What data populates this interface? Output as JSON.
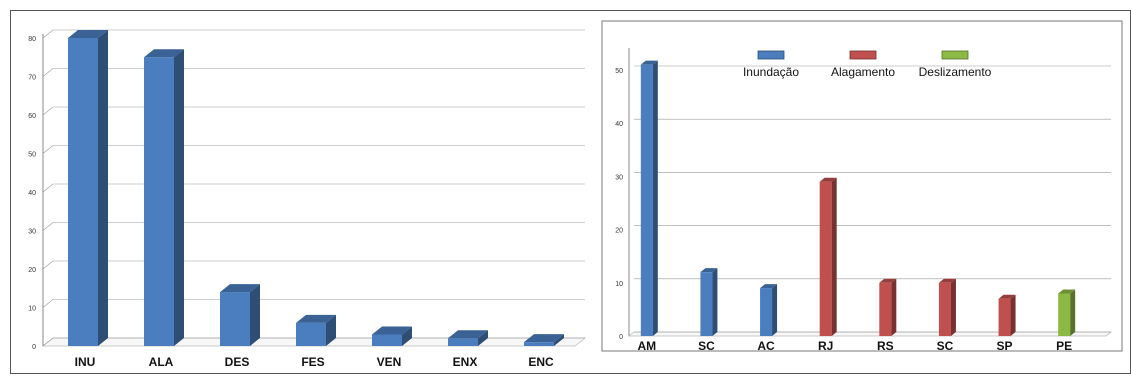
{
  "chart_data": [
    {
      "type": "bar",
      "categories": [
        "INU",
        "ALA",
        "DES",
        "FES",
        "VEN",
        "ENX",
        "ENC"
      ],
      "values": [
        80,
        75,
        14,
        6,
        3,
        2,
        1
      ],
      "ylim": [
        0,
        80
      ],
      "yticks": [
        0,
        10,
        20,
        30,
        40,
        50,
        60,
        70,
        80
      ],
      "grid": true,
      "color": "#4a7ebf"
    },
    {
      "type": "bar",
      "categories": [
        "AM",
        "SC",
        "AC",
        "RJ",
        "RS",
        "SC",
        "SP",
        "PE"
      ],
      "values": [
        51,
        12,
        9,
        29,
        10,
        10,
        7,
        8
      ],
      "groups": [
        "Inundação",
        "Inundação",
        "Inundação",
        "Alagamento",
        "Alagamento",
        "Alagamento",
        "Alagamento",
        "Deslizamento"
      ],
      "series": [
        {
          "name": "Inundação",
          "color": "#4a7ebf"
        },
        {
          "name": "Alagamento",
          "color": "#c0504d"
        },
        {
          "name": "Deslizamento",
          "color": "#8cb944"
        }
      ],
      "ylim": [
        0,
        50
      ],
      "yticks": [
        0,
        10,
        20,
        30,
        40,
        50
      ],
      "grid": true,
      "legend": "top"
    }
  ]
}
